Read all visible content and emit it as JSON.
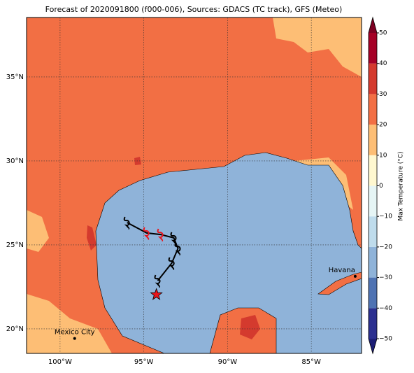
{
  "chart_data": {
    "type": "map",
    "title": "Forecast of 2020091800 (f000-006), Sources: GDACS (TC track), GFS (Meteo)",
    "xlim": [
      -102,
      -82
    ],
    "ylim": [
      18.54,
      38.54
    ],
    "xticks": [
      {
        "value": -100,
        "label": "100°W"
      },
      {
        "value": -95,
        "label": "95°W"
      },
      {
        "value": -90,
        "label": "90°W"
      },
      {
        "value": -85,
        "label": "85°W"
      }
    ],
    "yticks": [
      {
        "value": 20,
        "label": "20°N"
      },
      {
        "value": 25,
        "label": "25°N"
      },
      {
        "value": 30,
        "label": "30°N"
      },
      {
        "value": 35,
        "label": "35°N"
      }
    ],
    "grid": true,
    "track": {
      "lon": [
        -96.0,
        -94.83,
        -94.0,
        -93.21,
        -92.96,
        -93.33,
        -94.17
      ],
      "lat": [
        26.33,
        25.71,
        25.62,
        25.42,
        24.79,
        23.92,
        22.87
      ],
      "colors": [
        "#000000",
        "#e8141c",
        "#e8141c",
        "#000000",
        "#000000",
        "#000000",
        "#000000"
      ]
    },
    "star": {
      "lon": -94.25,
      "lat": 22.04,
      "color": "#e8141c"
    },
    "cities": [
      {
        "name": "Mexico City",
        "lon": -99.13,
        "lat": 19.43
      },
      {
        "name": "Havana",
        "lon": -82.38,
        "lat": 23.13
      }
    ],
    "colorbar": {
      "label": "Max Temperature (°C)",
      "ticks": [
        {
          "value": -50,
          "label": "−50"
        },
        {
          "value": -40,
          "label": "−40"
        },
        {
          "value": -30,
          "label": "−30"
        },
        {
          "value": -20,
          "label": "−20"
        },
        {
          "value": -10,
          "label": "−10"
        },
        0,
        10,
        20,
        30,
        40,
        50
      ],
      "colors": [
        "#2b2f8f",
        "#4f73b3",
        "#8fb3d9",
        "#bfdcec",
        "#e6f5f5",
        "#fff8d0",
        "#fdbe75",
        "#f26f44",
        "#d43a2e",
        "#a50026"
      ],
      "under": "#1c1d75",
      "over": "#7d0022"
    }
  }
}
